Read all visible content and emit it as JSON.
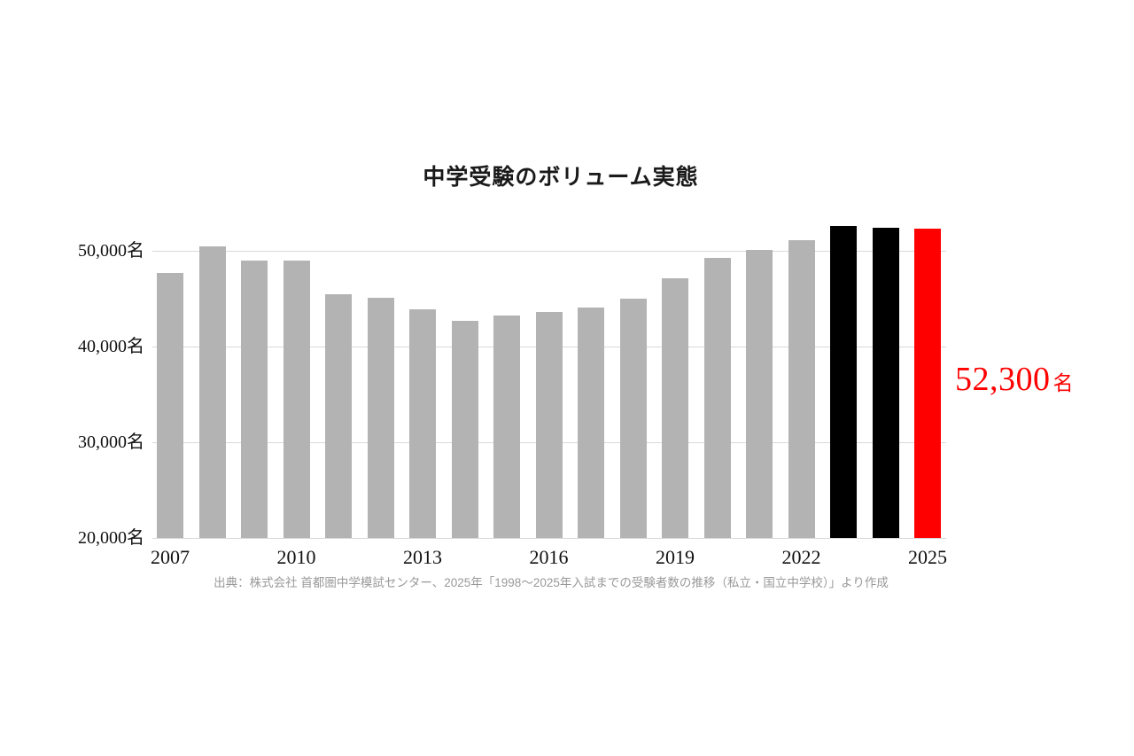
{
  "chart_data": {
    "type": "bar",
    "title": "中学受験のボリューム実態",
    "categories": [
      "2007",
      "2008",
      "2009",
      "2010",
      "2011",
      "2012",
      "2013",
      "2014",
      "2015",
      "2016",
      "2017",
      "2018",
      "2019",
      "2020",
      "2021",
      "2022",
      "2023",
      "2024",
      "2025"
    ],
    "values": [
      47700,
      50500,
      49000,
      49000,
      45500,
      45100,
      43900,
      42700,
      43200,
      43600,
      44100,
      45000,
      47100,
      49300,
      50050,
      51100,
      52600,
      52400,
      52300
    ],
    "bar_styles": [
      "gray",
      "gray",
      "gray",
      "gray",
      "gray",
      "gray",
      "gray",
      "gray",
      "gray",
      "gray",
      "gray",
      "gray",
      "gray",
      "gray",
      "gray",
      "gray",
      "black",
      "black",
      "red"
    ],
    "ylabel": "",
    "xlabel": "",
    "ylim": [
      20000,
      53500
    ],
    "grid": "horizontal",
    "legend": "none",
    "yticks": [
      {
        "value": 50000,
        "label": "50,000名"
      },
      {
        "value": 40000,
        "label": "40,000名"
      },
      {
        "value": 30000,
        "label": "30,000名"
      },
      {
        "value": 20000,
        "label": "20,000名"
      }
    ],
    "xticks": [
      "2007",
      "2010",
      "2013",
      "2016",
      "2019",
      "2022",
      "2025"
    ],
    "annotation": {
      "value": "52,300",
      "unit": "名",
      "color": "#ff0000",
      "target_year": "2025"
    },
    "colors": {
      "gray": "#b3b3b3",
      "black": "#000000",
      "red": "#ff0000",
      "gridline": "#d9d9d9",
      "title_text": "#1a1a1a",
      "axis_text": "#111111",
      "source_text": "#999999"
    }
  },
  "source": {
    "text": "出典：株式会社 首都圏中学模試センター、2025年「1998〜2025年入試までの受験者数の推移（私立・国立中学校）」より作成"
  }
}
